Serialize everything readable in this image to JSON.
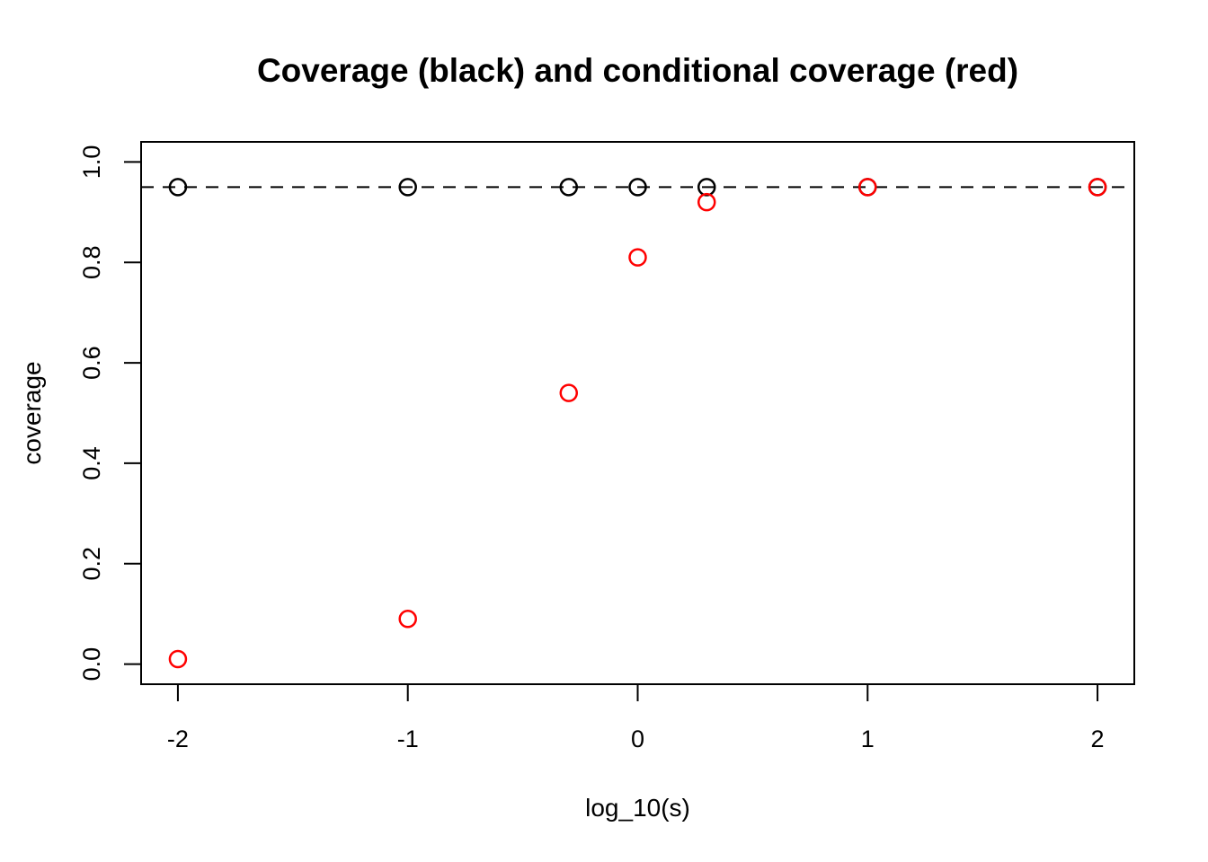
{
  "chart_data": {
    "type": "scatter",
    "title": "Coverage (black) and conditional coverage (red)",
    "xlabel": "log_10(s)",
    "ylabel": "coverage",
    "x": [
      -2,
      -1,
      -0.3,
      0,
      0.3,
      1,
      2
    ],
    "series": [
      {
        "name": "coverage",
        "color": "#000000",
        "marker": "open-circle",
        "values": [
          0.95,
          0.95,
          0.95,
          0.95,
          0.95,
          0.95,
          0.95
        ]
      },
      {
        "name": "conditional coverage",
        "color": "#ff0000",
        "marker": "open-circle",
        "values": [
          0.01,
          0.09,
          0.54,
          0.81,
          0.92,
          0.95,
          0.95
        ]
      }
    ],
    "reference_line": {
      "y": 0.95,
      "style": "dashed",
      "color": "#000000"
    },
    "x_ticks": [
      "-2",
      "-1",
      "0",
      "1",
      "2"
    ],
    "x_tick_values": [
      -2,
      -1,
      0,
      1,
      2
    ],
    "y_ticks": [
      "0.0",
      "0.2",
      "0.4",
      "0.6",
      "0.8",
      "1.0"
    ],
    "y_tick_values": [
      0.0,
      0.2,
      0.4,
      0.6,
      0.8,
      1.0
    ],
    "xlim": [
      -2.16,
      2.16
    ],
    "ylim": [
      -0.04,
      1.04
    ],
    "grid": false,
    "legend": "none",
    "background": "#ffffff",
    "axis_color": "#000000"
  }
}
